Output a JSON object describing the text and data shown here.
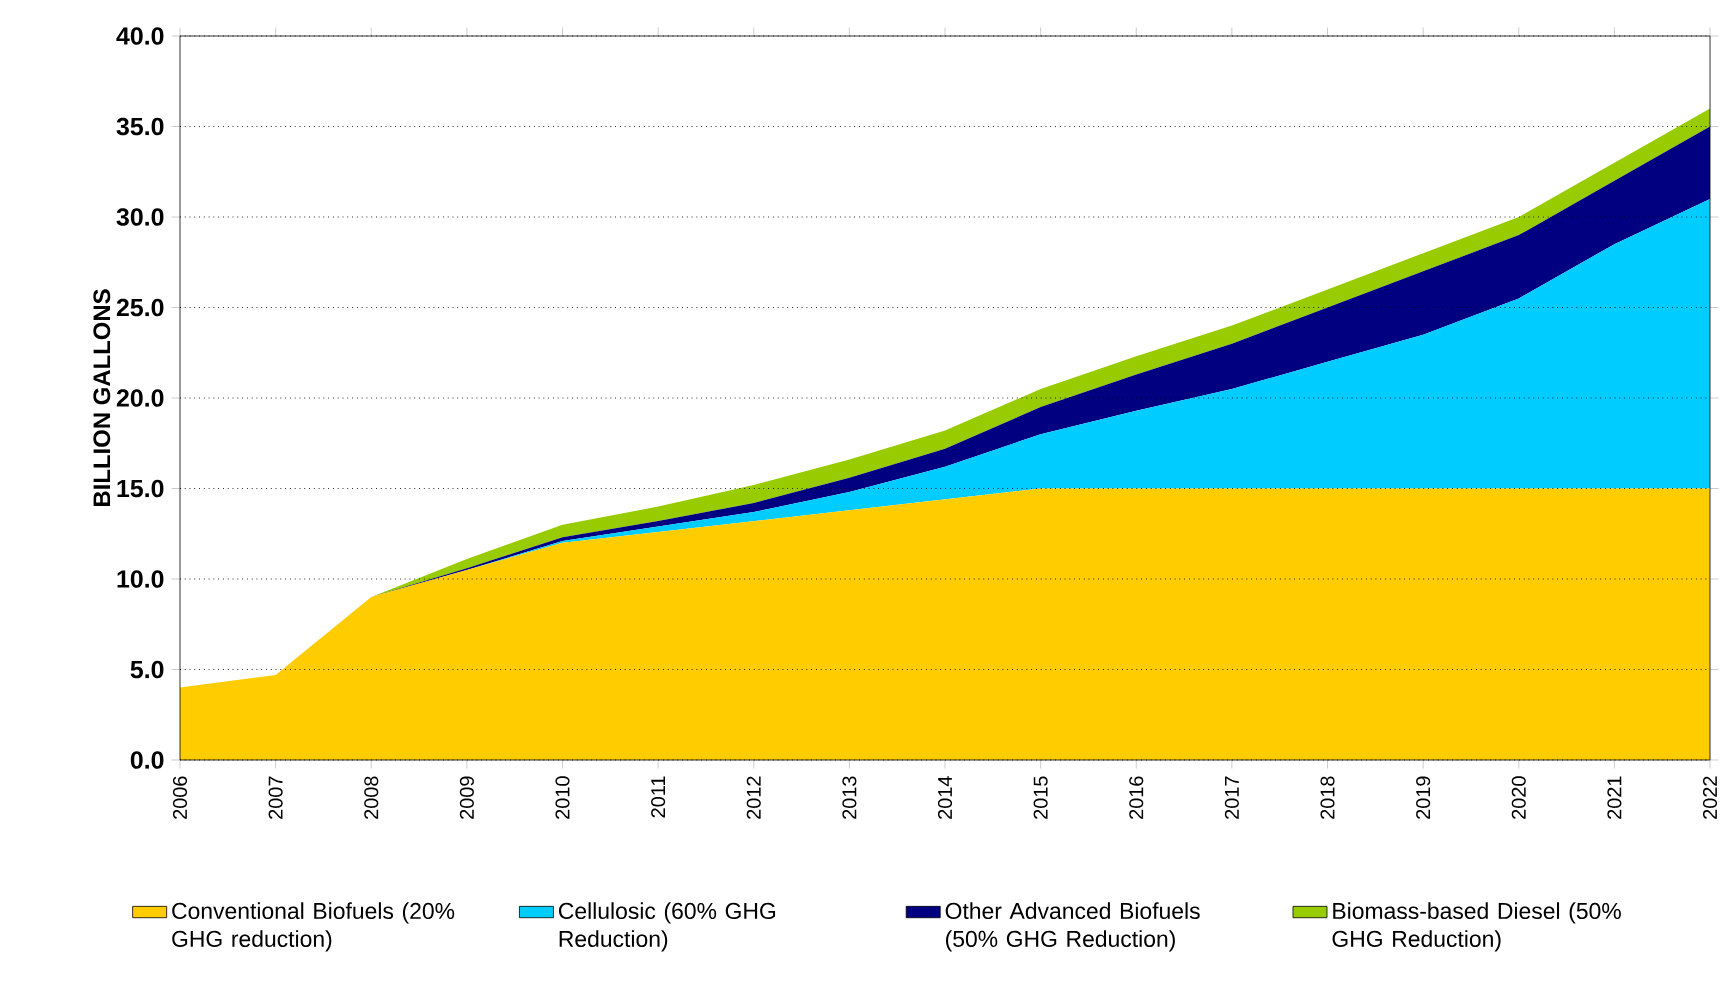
{
  "chart_data": {
    "type": "area",
    "stacked": true,
    "ylabel": "BILLION GALLONS",
    "categories": [
      "2006",
      "2007",
      "2008",
      "2009",
      "2010",
      "2011",
      "2012",
      "2013",
      "2014",
      "2015",
      "2016",
      "2017",
      "2018",
      "2019",
      "2020",
      "2021",
      "2022"
    ],
    "series": [
      {
        "name": "Conventional Biofuels (20% GHG reduction)",
        "color": "#ffcc00",
        "values": [
          4.0,
          4.7,
          9.0,
          10.5,
          12.0,
          12.6,
          13.2,
          13.8,
          14.4,
          15.0,
          15.0,
          15.0,
          15.0,
          15.0,
          15.0,
          15.0,
          15.0
        ]
      },
      {
        "name": "Cellulosic (60% GHG Reduction)",
        "color": "#00ccff",
        "values": [
          0,
          0,
          0,
          0,
          0.1,
          0.3,
          0.5,
          1.0,
          1.8,
          3.0,
          4.3,
          5.5,
          7.0,
          8.5,
          10.5,
          13.5,
          16.0
        ]
      },
      {
        "name": "Other Advanced Biofuels (50% GHG Reduction)",
        "color": "#000080",
        "values": [
          0,
          0,
          0,
          0.1,
          0.2,
          0.3,
          0.5,
          0.8,
          1.0,
          1.5,
          2.0,
          2.5,
          3.0,
          3.5,
          3.5,
          3.5,
          4.0
        ]
      },
      {
        "name": "Biomass-based Diesel (50% GHG Reduction)",
        "color": "#99cc00",
        "values": [
          0,
          0,
          0,
          0.5,
          0.7,
          0.8,
          1.0,
          1.0,
          1.0,
          1.0,
          1.0,
          1.0,
          1.0,
          1.0,
          1.0,
          1.0,
          1.0
        ]
      }
    ],
    "ylim": [
      0,
      40
    ],
    "yticks": [
      {
        "value": 0,
        "label": "0.0"
      },
      {
        "value": 5,
        "label": "5.0"
      },
      {
        "value": 10,
        "label": "10.0"
      },
      {
        "value": 15,
        "label": "15.0"
      },
      {
        "value": 20,
        "label": "20.0"
      },
      {
        "value": 25,
        "label": "25.0"
      },
      {
        "value": 30,
        "label": "30.0"
      },
      {
        "value": 35,
        "label": "35.0"
      },
      {
        "value": 40,
        "label": "40.0"
      }
    ],
    "grid": "y",
    "legend": "bottom"
  }
}
